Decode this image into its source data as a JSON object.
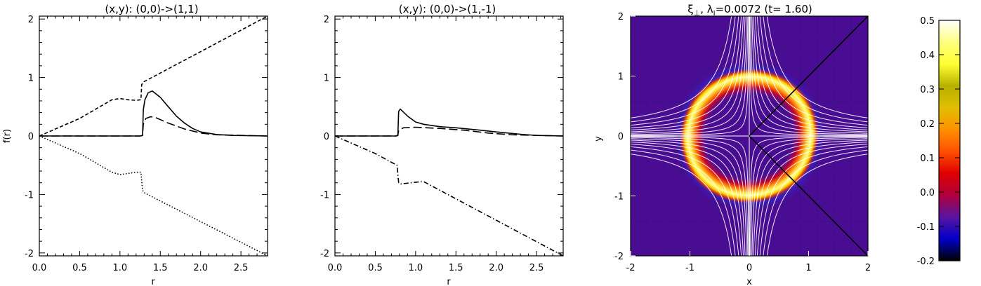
{
  "chart_data": [
    {
      "type": "line",
      "title": "(x,y): (0,0)->(1,1)",
      "xlabel": "r",
      "ylabel": "f(r)",
      "xlim": [
        0,
        2.83
      ],
      "ylim": [
        -2.05,
        2.05
      ],
      "xticks": [
        "0.0",
        "0.5",
        "1.0",
        "1.5",
        "2.0",
        "2.5"
      ],
      "yticks": [
        "-2",
        "-1",
        "0",
        "1",
        "2"
      ],
      "series": [
        {
          "style": "solid",
          "points": [
            [
              0,
              0
            ],
            [
              1.25,
              0
            ],
            [
              1.28,
              0.01
            ],
            [
              1.29,
              0.45
            ],
            [
              1.31,
              0.62
            ],
            [
              1.35,
              0.74
            ],
            [
              1.4,
              0.77
            ],
            [
              1.5,
              0.66
            ],
            [
              1.6,
              0.5
            ],
            [
              1.7,
              0.34
            ],
            [
              1.8,
              0.22
            ],
            [
              1.9,
              0.13
            ],
            [
              2.0,
              0.07
            ],
            [
              2.2,
              0.025
            ],
            [
              2.4,
              0.01
            ],
            [
              2.83,
              0
            ]
          ]
        },
        {
          "style": "longdash",
          "points": [
            [
              0,
              0
            ],
            [
              1.25,
              0
            ],
            [
              1.28,
              0.01
            ],
            [
              1.29,
              0.2
            ],
            [
              1.32,
              0.3
            ],
            [
              1.38,
              0.33
            ],
            [
              1.45,
              0.31
            ],
            [
              1.6,
              0.22
            ],
            [
              1.8,
              0.12
            ],
            [
              2.0,
              0.05
            ],
            [
              2.2,
              0.02
            ],
            [
              2.83,
              0
            ]
          ]
        },
        {
          "style": "shortdash",
          "points": [
            [
              0,
              0
            ],
            [
              0.5,
              0.3
            ],
            [
              0.9,
              0.62
            ],
            [
              1.0,
              0.64
            ],
            [
              1.1,
              0.62
            ],
            [
              1.2,
              0.61
            ],
            [
              1.26,
              0.62
            ],
            [
              1.27,
              0.88
            ],
            [
              1.3,
              0.93
            ],
            [
              2.83,
              2.05
            ]
          ]
        },
        {
          "style": "dotted",
          "points": [
            [
              0,
              0
            ],
            [
              0.5,
              -0.3
            ],
            [
              0.9,
              -0.62
            ],
            [
              1.0,
              -0.66
            ],
            [
              1.1,
              -0.64
            ],
            [
              1.2,
              -0.62
            ],
            [
              1.26,
              -0.62
            ],
            [
              1.28,
              -0.93
            ],
            [
              1.3,
              -0.97
            ],
            [
              2.83,
              -2.05
            ]
          ]
        }
      ]
    },
    {
      "type": "line",
      "title": "(x,y): (0,0)->(1,-1)",
      "xlabel": "r",
      "xlim": [
        0,
        2.83
      ],
      "ylim": [
        -2.05,
        2.05
      ],
      "xticks": [
        "0.0",
        "0.5",
        "1.0",
        "1.5",
        "2.0",
        "2.5"
      ],
      "yticks": [
        "-2",
        "-1",
        "0",
        "1",
        "2"
      ],
      "series": [
        {
          "style": "solid",
          "points": [
            [
              0,
              0
            ],
            [
              0.76,
              0
            ],
            [
              0.78,
              0.02
            ],
            [
              0.79,
              0.42
            ],
            [
              0.81,
              0.46
            ],
            [
              0.9,
              0.34
            ],
            [
              1.0,
              0.24
            ],
            [
              1.1,
              0.2
            ],
            [
              1.3,
              0.16
            ],
            [
              1.5,
              0.14
            ],
            [
              1.8,
              0.1
            ],
            [
              2.0,
              0.07
            ],
            [
              2.3,
              0.03
            ],
            [
              2.5,
              0.01
            ],
            [
              2.83,
              0
            ]
          ]
        },
        {
          "style": "longdash",
          "points": [
            [
              0,
              0
            ],
            [
              0.76,
              0
            ],
            [
              0.78,
              0.01
            ],
            [
              0.79,
              0.1
            ],
            [
              0.85,
              0.14
            ],
            [
              1.0,
              0.15
            ],
            [
              1.3,
              0.13
            ],
            [
              1.6,
              0.1
            ],
            [
              1.9,
              0.05
            ],
            [
              2.2,
              0.02
            ],
            [
              2.83,
              0
            ]
          ]
        },
        {
          "style": "dashdot",
          "points": [
            [
              0,
              0
            ],
            [
              0.5,
              -0.3
            ],
            [
              0.7,
              -0.45
            ],
            [
              0.77,
              -0.5
            ],
            [
              0.79,
              -0.8
            ],
            [
              0.82,
              -0.82
            ],
            [
              1.0,
              -0.79
            ],
            [
              1.1,
              -0.78
            ],
            [
              2.83,
              -2.05
            ]
          ]
        }
      ]
    },
    {
      "type": "heatmap",
      "title": "ξ⊥, λI=0.0072 (t=  1.60)",
      "title_parts": {
        "xi": "ξ",
        "perp": "⊥",
        "lambda": ", λ",
        "sub": "I",
        "rest": "=0.0072 (t=  1.60)"
      },
      "xlabel": "x",
      "ylabel": "y",
      "xlim": [
        -2,
        2
      ],
      "ylim": [
        -2,
        2
      ],
      "xticks": [
        "-2",
        "-1",
        "0",
        "1",
        "2"
      ],
      "yticks": [
        "-2",
        "-1",
        "0",
        "1",
        "2"
      ],
      "background_value": -0.02,
      "ring": {
        "center": [
          0,
          0
        ],
        "radius": 1.05,
        "peak": 0.5
      },
      "field_lines": "white hyperbolic separatrix lines",
      "cut_lines": [
        [
          [
            0,
            0
          ],
          [
            2,
            2
          ]
        ],
        [
          [
            0,
            0
          ],
          [
            2,
            -2
          ]
        ]
      ]
    },
    {
      "type": "colorbar",
      "range": [
        -0.2,
        0.5
      ],
      "ticks": [
        "-0.2",
        "-0.1",
        "0.0",
        "0.1",
        "0.2",
        "0.3",
        "0.4",
        "0.5"
      ],
      "colormap": [
        "#000000",
        "#0000c8",
        "#5a14a0",
        "#b0003c",
        "#e00000",
        "#ff5000",
        "#ff9000",
        "#e0c000",
        "#b8b000",
        "#ffff30",
        "#ffff80",
        "#ffffff"
      ]
    }
  ]
}
